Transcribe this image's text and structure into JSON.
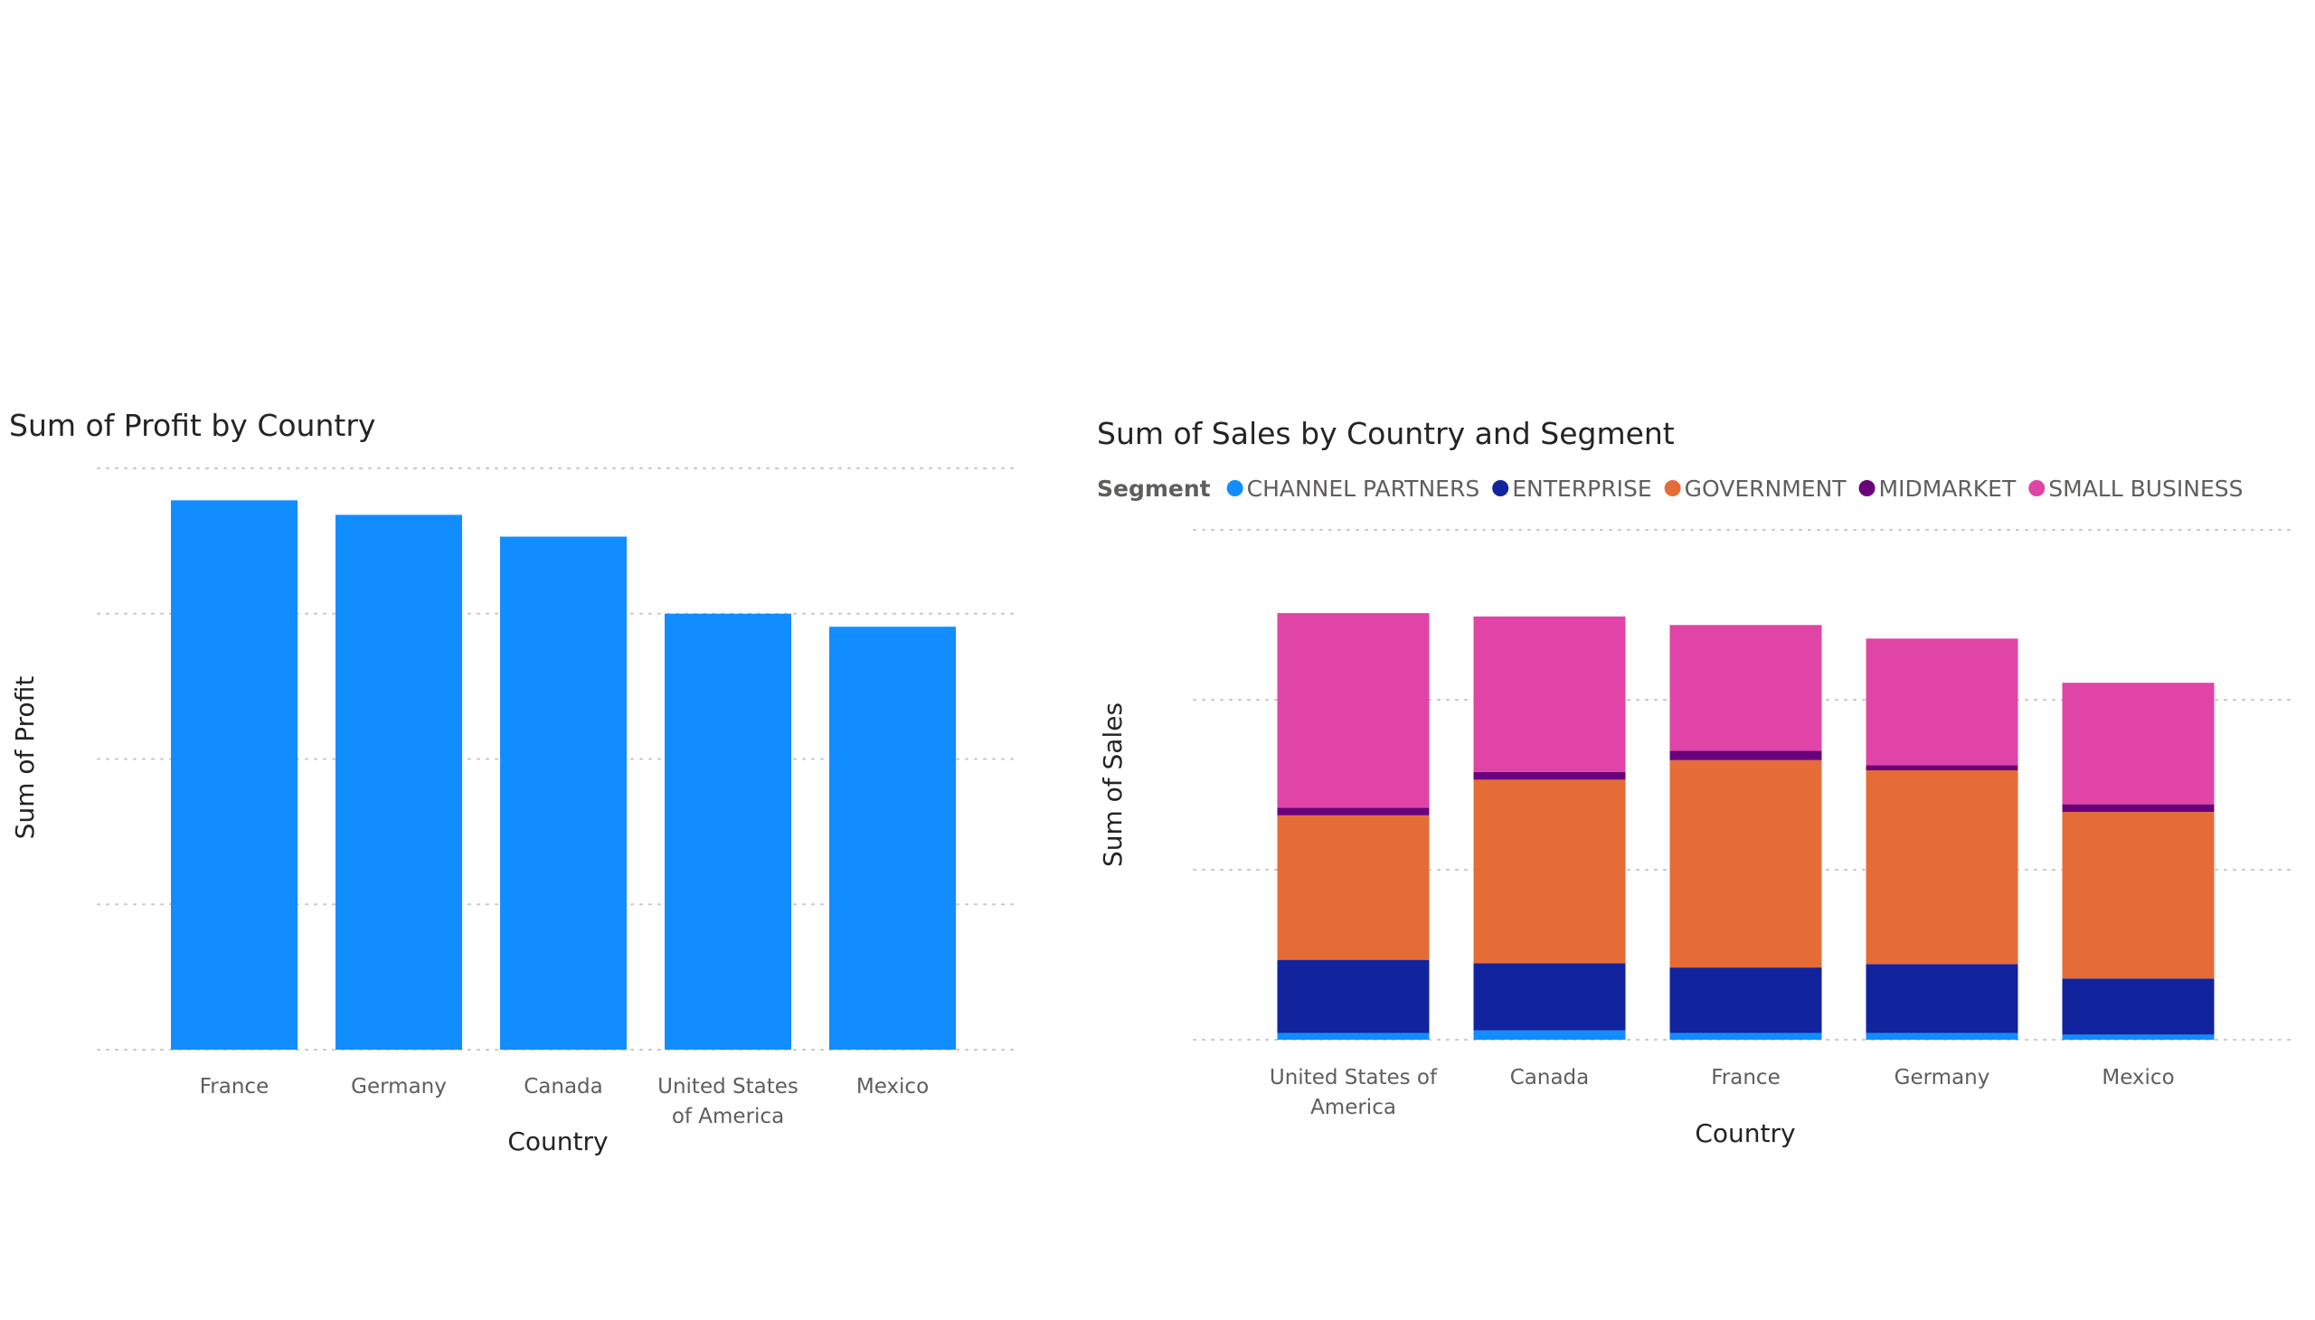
{
  "chart_data": [
    {
      "type": "bar",
      "title": "Sum of Profit by Country",
      "xlabel": "Country",
      "ylabel": "Sum of Profit",
      "categories": [
        "France",
        "Germany",
        "Canada",
        "United States of America",
        "Mexico"
      ],
      "values": [
        3780000,
        3680000,
        3530000,
        3000000,
        2910000
      ],
      "ylim": [
        0,
        4000000
      ],
      "yticks": [
        "0M",
        "1M",
        "2M",
        "3M",
        "4M"
      ],
      "grid": true,
      "colors": {
        "bar": "#118dff"
      }
    },
    {
      "type": "bar",
      "stacked": true,
      "title": "Sum of Sales by Country and Segment",
      "xlabel": "Country",
      "ylabel": "Sum of Sales",
      "legend_title": "Segment",
      "legend_position": "top-left",
      "categories": [
        "United States of America",
        "Canada",
        "France",
        "Germany",
        "Mexico"
      ],
      "series": [
        {
          "name": "CHANNEL PARTNERS",
          "color": "#118dff",
          "values": [
            400000,
            550000,
            400000,
            400000,
            300000
          ]
        },
        {
          "name": "ENTERPRISE",
          "color": "#12239e",
          "values": [
            4300000,
            3950000,
            3850000,
            4050000,
            3300000
          ]
        },
        {
          "name": "GOVERNMENT",
          "color": "#e66c37",
          "values": [
            8500000,
            10800000,
            12200000,
            11400000,
            9800000
          ]
        },
        {
          "name": "MIDMARKET",
          "color": "#6b007b",
          "values": [
            450000,
            450000,
            550000,
            300000,
            450000
          ]
        },
        {
          "name": "SMALL BUSINESS",
          "color": "#e044a7",
          "values": [
            11450000,
            9150000,
            7400000,
            7450000,
            7150000
          ]
        }
      ],
      "ylim": [
        0,
        30000000
      ],
      "yticks": [
        "0M",
        "10M",
        "20M",
        "30M"
      ],
      "grid": true
    }
  ]
}
